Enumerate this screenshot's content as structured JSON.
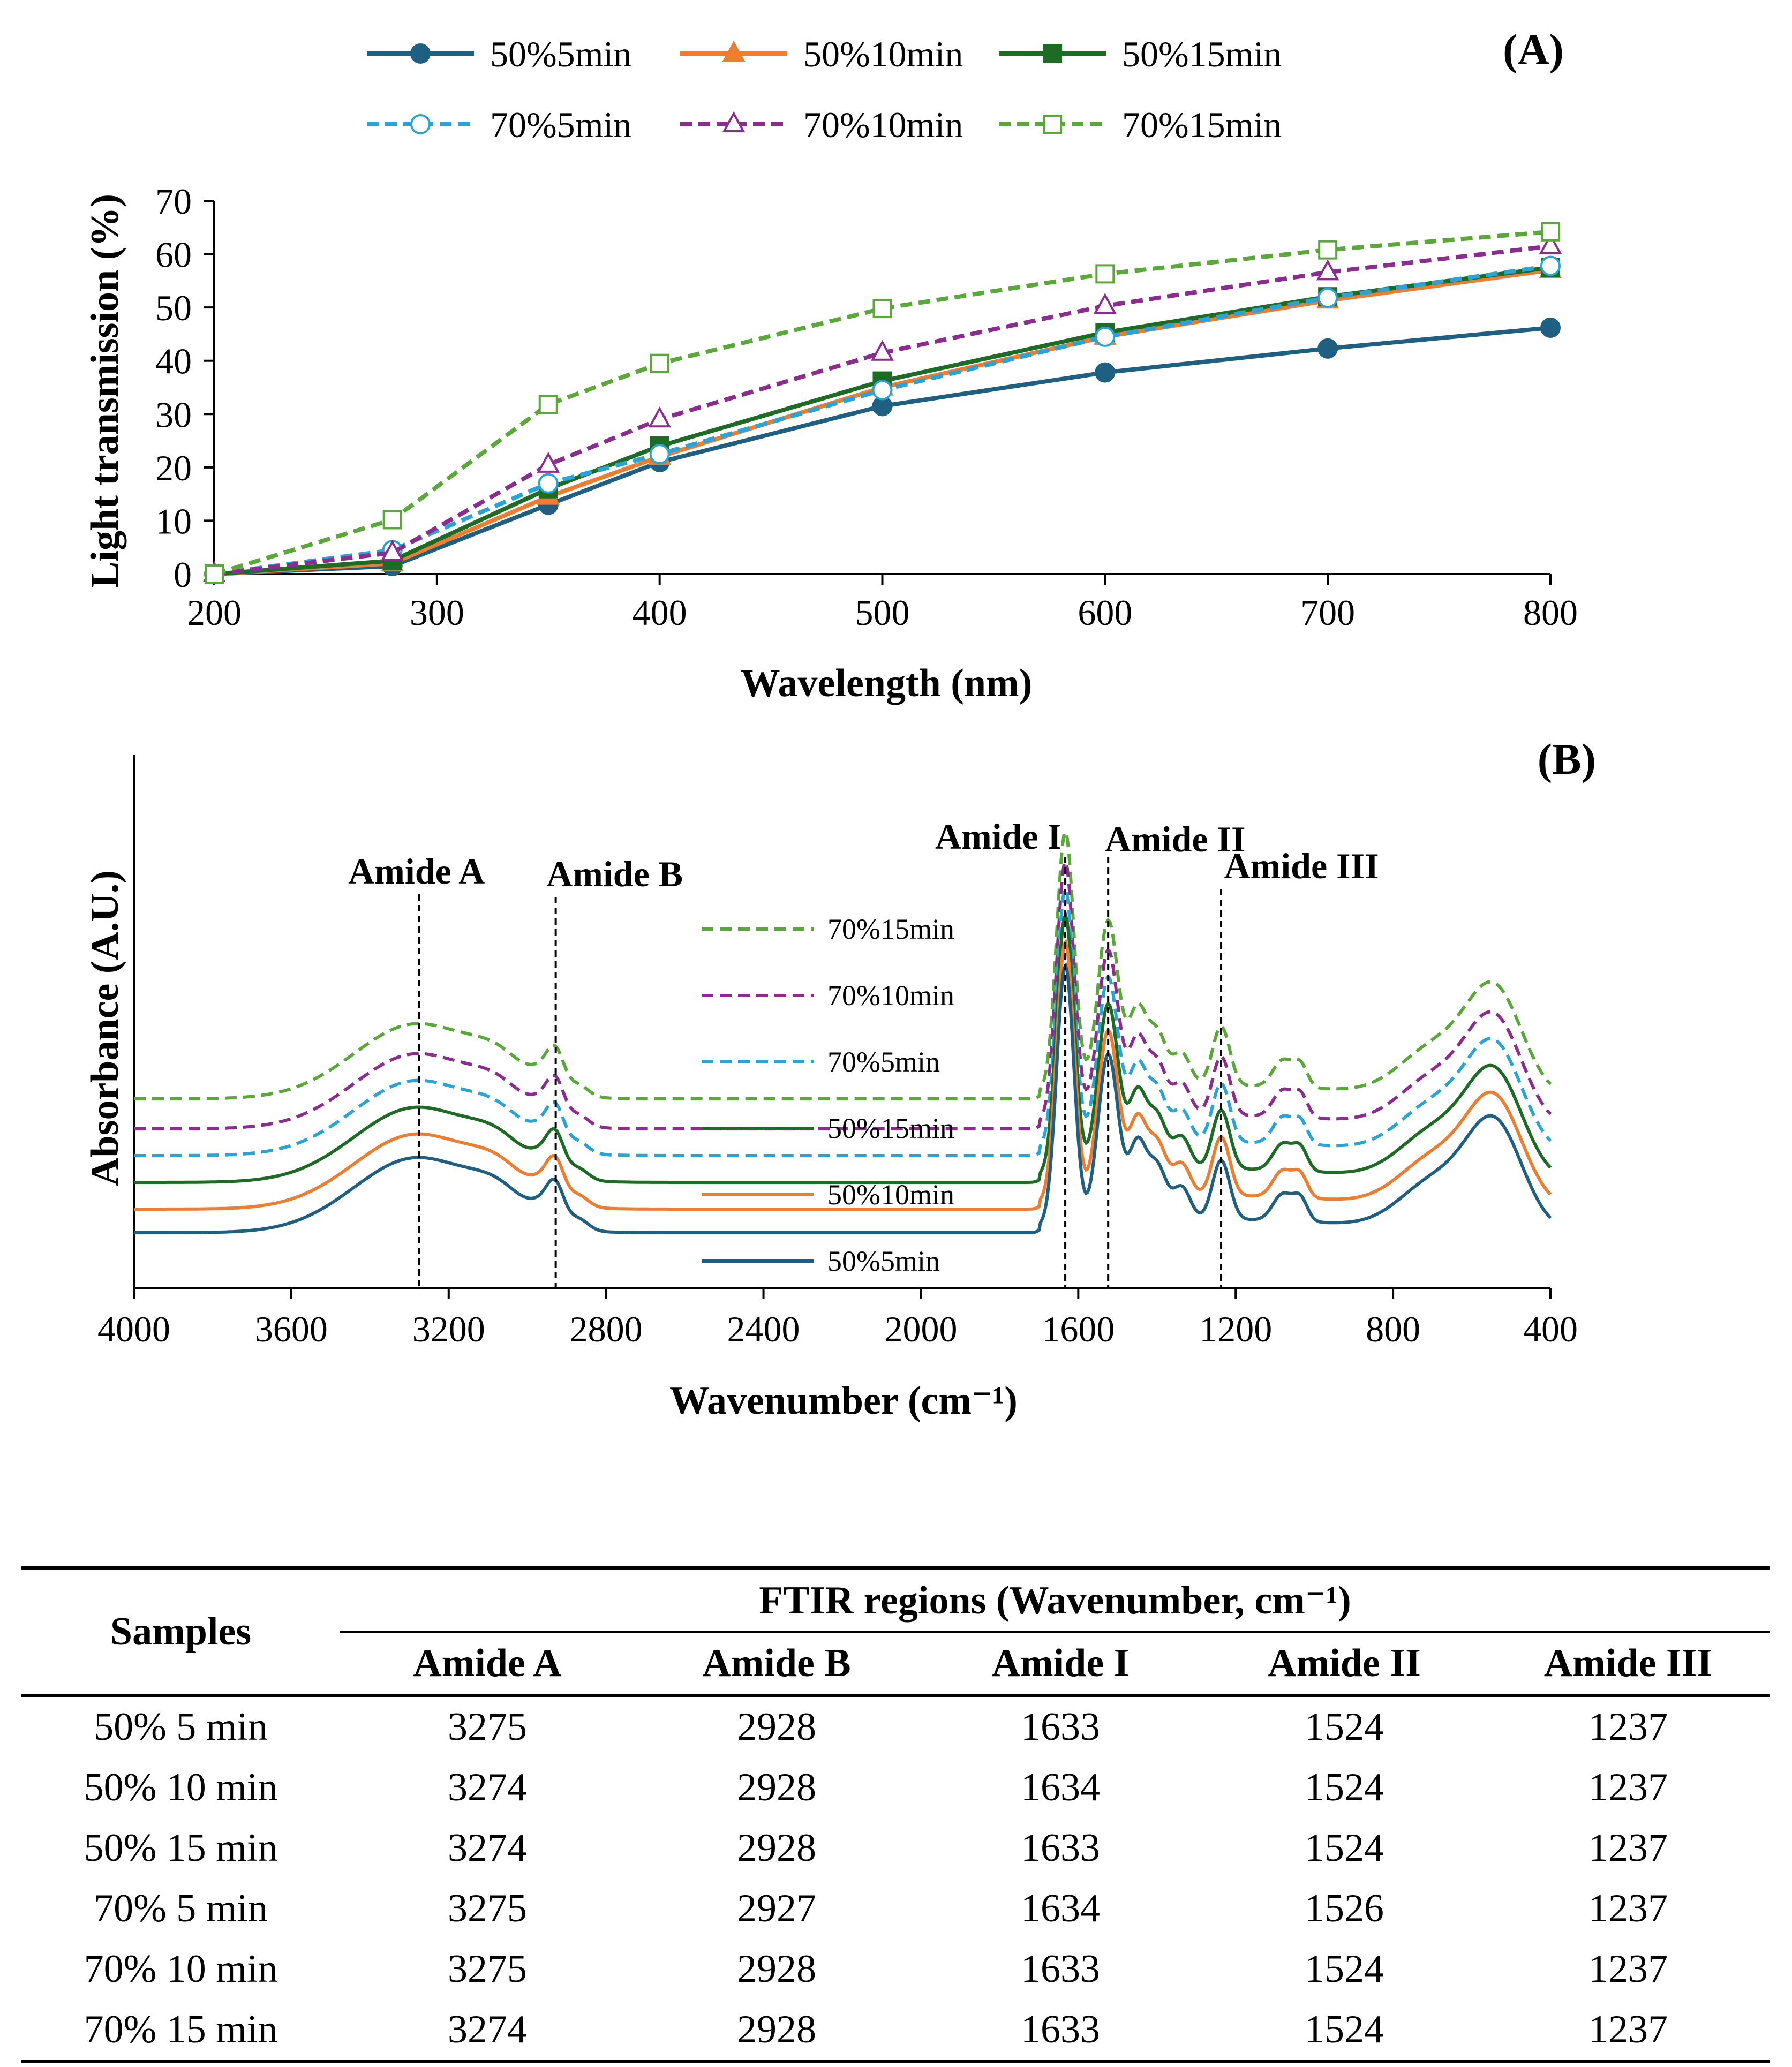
{
  "chart_data": [
    {
      "panel": "A",
      "type": "line",
      "panel_label": "(A)",
      "xlabel": "Wavelength (nm)",
      "ylabel": "Light transmission (%)",
      "xlim": [
        200,
        800
      ],
      "ylim": [
        0,
        70
      ],
      "xticks": [
        200,
        300,
        400,
        500,
        600,
        700,
        800
      ],
      "yticks": [
        0,
        10,
        20,
        30,
        40,
        50,
        60,
        70
      ],
      "x": [
        200,
        280,
        350,
        400,
        500,
        600,
        700,
        800
      ],
      "legend_position": "top",
      "series": [
        {
          "name": "50%5min",
          "color": "#1f5f82",
          "dash": "solid",
          "marker": "circle",
          "filled": true,
          "values": [
            0,
            1.5,
            13,
            21,
            31.5,
            37.8,
            42.3,
            46.2
          ]
        },
        {
          "name": "50%10min",
          "color": "#ed7d31",
          "dash": "solid",
          "marker": "triangle",
          "filled": true,
          "values": [
            0,
            2.0,
            14.5,
            22,
            35,
            44.5,
            51.3,
            57
          ]
        },
        {
          "name": "50%15min",
          "color": "#1e6b26",
          "dash": "solid",
          "marker": "square",
          "filled": true,
          "values": [
            0,
            2.5,
            16,
            24,
            36.2,
            45.3,
            52,
            57.5
          ]
        },
        {
          "name": "70%5min",
          "color": "#2aa3d6",
          "dash": "dashed",
          "marker": "circle",
          "filled": false,
          "values": [
            0,
            4.5,
            17,
            22.5,
            34.5,
            44.5,
            51.8,
            57.8
          ]
        },
        {
          "name": "70%10min",
          "color": "#8b2c8f",
          "dash": "dashed",
          "marker": "triangle",
          "filled": false,
          "values": [
            0,
            4.0,
            20.5,
            29,
            41.5,
            50.3,
            56.6,
            61.5
          ]
        },
        {
          "name": "70%15min",
          "color": "#5aa83a",
          "dash": "dashed",
          "marker": "square",
          "filled": false,
          "values": [
            0,
            10.2,
            31.8,
            39.5,
            49.8,
            56.3,
            60.8,
            64.2
          ]
        }
      ]
    },
    {
      "panel": "B",
      "type": "line",
      "panel_label": "(B)",
      "xlabel": "Wavenumber (cm⁻¹)",
      "ylabel": "Absorbance (A.U.)",
      "xlim": [
        4000,
        400
      ],
      "x_reversed": true,
      "xticks": [
        4000,
        3600,
        3200,
        2800,
        2400,
        2000,
        1600,
        1200,
        800,
        400
      ],
      "yticks": [],
      "annotations": [
        {
          "label": "Amide A",
          "x": 3275
        },
        {
          "label": "Amide B",
          "x": 2928
        },
        {
          "label": "Amide I",
          "x": 1633
        },
        {
          "label": "Amide II",
          "x": 1524
        },
        {
          "label": "Amide III",
          "x": 1237
        }
      ],
      "series": [
        {
          "name": "70%15min",
          "color": "#5aa83a",
          "dash": "dashed"
        },
        {
          "name": "70%10min",
          "color": "#8b2c8f",
          "dash": "dashed"
        },
        {
          "name": "70%5min",
          "color": "#2aa3d6",
          "dash": "dashed"
        },
        {
          "name": "50%15min",
          "color": "#1e6b26",
          "dash": "solid"
        },
        {
          "name": "50%10min",
          "color": "#ed7d31",
          "dash": "solid"
        },
        {
          "name": "50%5min",
          "color": "#1f5f82",
          "dash": "solid"
        }
      ]
    }
  ],
  "table": {
    "samples_header": "Samples",
    "group_header": "FTIR regions (Wavenumber, cm⁻¹)",
    "columns": [
      "Amide A",
      "Amide B",
      "Amide I",
      "Amide II",
      "Amide III"
    ],
    "rows": [
      {
        "sample": "50% 5 min",
        "values": [
          "3275",
          "2928",
          "1633",
          "1524",
          "1237"
        ]
      },
      {
        "sample": "50% 10 min",
        "values": [
          "3274",
          "2928",
          "1634",
          "1524",
          "1237"
        ]
      },
      {
        "sample": "50% 15 min",
        "values": [
          "3274",
          "2928",
          "1633",
          "1524",
          "1237"
        ]
      },
      {
        "sample": "70% 5 min",
        "values": [
          "3275",
          "2927",
          "1634",
          "1526",
          "1237"
        ]
      },
      {
        "sample": "70% 10 min",
        "values": [
          "3275",
          "2928",
          "1633",
          "1524",
          "1237"
        ]
      },
      {
        "sample": "70% 15 min",
        "values": [
          "3274",
          "2928",
          "1633",
          "1524",
          "1237"
        ]
      }
    ]
  }
}
